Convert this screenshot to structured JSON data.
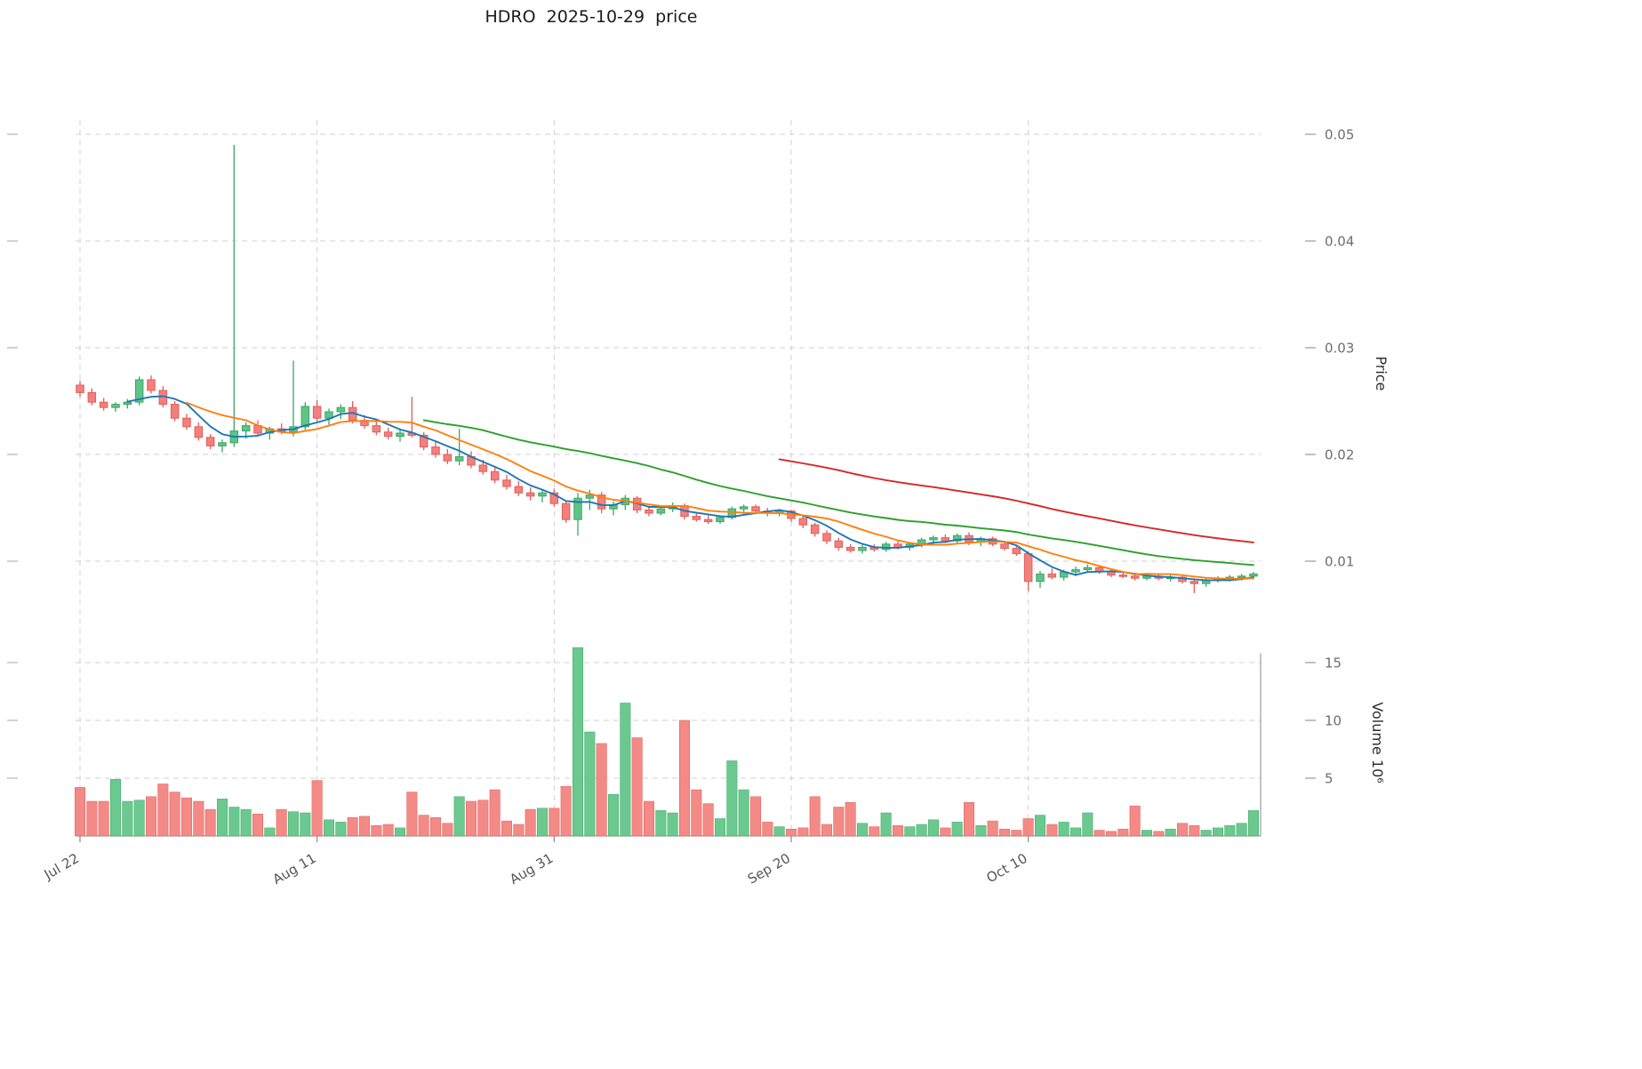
{
  "title": "HDRO  2025-10-29  price",
  "chart_data": {
    "type": "candlestick",
    "title": "HDRO  2025-10-29  price",
    "price_unit": 0.001,
    "volume_unit": 1000000,
    "x_ticks": [
      {
        "day": 0,
        "label": "Jul 22"
      },
      {
        "day": 20,
        "label": "Aug 11"
      },
      {
        "day": 40,
        "label": "Aug 31"
      },
      {
        "day": 60,
        "label": "Sep 20"
      },
      {
        "day": 80,
        "label": "Oct 10"
      }
    ],
    "price_axis": {
      "label": "Price",
      "ticks": [
        {
          "value": 10,
          "label": "0.01"
        },
        {
          "value": 20,
          "label": "0.02"
        },
        {
          "value": 30,
          "label": "0.03"
        },
        {
          "value": 40,
          "label": "0.04"
        },
        {
          "value": 50,
          "label": "0.05"
        }
      ]
    },
    "volume_axis": {
      "label": "Volume  10⁶",
      "ticks": [
        {
          "value": 5,
          "label": "5"
        },
        {
          "value": 10,
          "label": "10"
        },
        {
          "value": 15,
          "label": "15"
        }
      ]
    },
    "moving_averages": [
      {
        "name": "ma-short",
        "window": 5,
        "color": "#1f77b4"
      },
      {
        "name": "ma-mid",
        "window": 10,
        "color": "#ff7f0e"
      },
      {
        "name": "ma-long",
        "window": 30,
        "color": "#2ca02c"
      },
      {
        "name": "ma-longest",
        "window": 60,
        "color": "#d62728"
      }
    ],
    "colors": {
      "up": "#5ec487",
      "up_edge": "#3ba766",
      "down": "#f2807c",
      "down_edge": "#e05e5a",
      "grid": "#d0d0d0",
      "spine": "#8a8a8a",
      "tick_text": "#6e6e6e",
      "date_text": "#555555",
      "axis_label": "#2f2f2f",
      "title": "#1b1b1b"
    },
    "ohlc": [
      [
        26.5,
        26.9,
        25.4,
        25.8
      ],
      [
        25.8,
        26.2,
        24.6,
        24.9
      ],
      [
        24.9,
        25.3,
        24.1,
        24.4
      ],
      [
        24.4,
        24.9,
        24.0,
        24.7
      ],
      [
        24.7,
        25.2,
        24.3,
        24.9
      ],
      [
        24.9,
        27.3,
        24.6,
        27.0
      ],
      [
        27.0,
        27.4,
        25.7,
        26.0
      ],
      [
        26.0,
        26.4,
        24.4,
        24.7
      ],
      [
        24.7,
        25.0,
        23.1,
        23.4
      ],
      [
        23.4,
        23.8,
        22.3,
        22.6
      ],
      [
        22.6,
        23.0,
        21.3,
        21.6
      ],
      [
        21.6,
        21.9,
        20.5,
        20.8
      ],
      [
        20.8,
        21.4,
        20.2,
        21.1
      ],
      [
        21.1,
        49.0,
        20.7,
        22.2
      ],
      [
        22.2,
        23.0,
        21.5,
        22.7
      ],
      [
        22.7,
        23.2,
        21.8,
        22.0
      ],
      [
        22.0,
        22.6,
        21.4,
        22.4
      ],
      [
        22.4,
        22.9,
        21.9,
        22.1
      ],
      [
        22.1,
        28.8,
        21.7,
        22.6
      ],
      [
        22.6,
        24.9,
        22.3,
        24.5
      ],
      [
        24.5,
        25.1,
        23.1,
        23.4
      ],
      [
        23.4,
        24.3,
        22.8,
        24.0
      ],
      [
        24.0,
        24.7,
        23.3,
        24.4
      ],
      [
        24.4,
        25.0,
        22.9,
        23.2
      ],
      [
        23.2,
        23.7,
        22.4,
        22.7
      ],
      [
        22.7,
        23.1,
        21.8,
        22.1
      ],
      [
        22.1,
        22.5,
        21.4,
        21.7
      ],
      [
        21.7,
        22.3,
        21.2,
        22.0
      ],
      [
        22.0,
        25.4,
        21.6,
        21.8
      ],
      [
        21.8,
        22.1,
        20.4,
        20.7
      ],
      [
        20.7,
        21.3,
        19.7,
        20.0
      ],
      [
        20.0,
        20.5,
        19.1,
        19.4
      ],
      [
        19.4,
        22.4,
        19.0,
        19.8
      ],
      [
        19.8,
        20.3,
        18.7,
        19.0
      ],
      [
        19.0,
        19.5,
        18.1,
        18.4
      ],
      [
        18.4,
        18.9,
        17.3,
        17.6
      ],
      [
        17.6,
        18.1,
        16.7,
        17.0
      ],
      [
        17.0,
        17.5,
        16.1,
        16.4
      ],
      [
        16.4,
        16.9,
        15.7,
        16.1
      ],
      [
        16.1,
        16.7,
        15.5,
        16.4
      ],
      [
        16.4,
        16.8,
        15.1,
        15.4
      ],
      [
        15.4,
        15.7,
        13.6,
        13.9
      ],
      [
        13.9,
        16.4,
        12.4,
        15.9
      ],
      [
        15.9,
        16.7,
        14.8,
        16.2
      ],
      [
        16.2,
        16.5,
        14.5,
        14.9
      ],
      [
        14.9,
        15.6,
        14.3,
        15.3
      ],
      [
        15.3,
        16.2,
        14.8,
        15.9
      ],
      [
        15.9,
        16.1,
        14.5,
        14.8
      ],
      [
        14.8,
        15.2,
        14.2,
        14.5
      ],
      [
        14.5,
        15.1,
        14.3,
        14.9
      ],
      [
        14.9,
        15.5,
        14.6,
        15.2
      ],
      [
        15.2,
        15.4,
        13.9,
        14.2
      ],
      [
        14.2,
        14.6,
        13.7,
        13.9
      ],
      [
        13.9,
        14.3,
        13.5,
        13.7
      ],
      [
        13.7,
        14.3,
        13.5,
        14.1
      ],
      [
        14.1,
        15.1,
        13.9,
        14.9
      ],
      [
        14.9,
        15.3,
        14.4,
        15.1
      ],
      [
        15.1,
        15.3,
        14.4,
        14.7
      ],
      [
        14.7,
        15.0,
        14.2,
        14.5
      ],
      [
        14.5,
        14.9,
        14.2,
        14.7
      ],
      [
        14.7,
        14.8,
        13.7,
        14.0
      ],
      [
        14.0,
        14.2,
        13.1,
        13.4
      ],
      [
        13.4,
        13.6,
        12.3,
        12.6
      ],
      [
        12.6,
        12.9,
        11.6,
        11.9
      ],
      [
        11.9,
        12.2,
        11.0,
        11.3
      ],
      [
        11.3,
        11.6,
        10.8,
        11.0
      ],
      [
        11.0,
        11.5,
        10.7,
        11.3
      ],
      [
        11.3,
        11.6,
        10.9,
        11.1
      ],
      [
        11.1,
        11.8,
        10.9,
        11.6
      ],
      [
        11.6,
        11.9,
        11.1,
        11.3
      ],
      [
        11.3,
        11.8,
        11.0,
        11.6
      ],
      [
        11.6,
        12.2,
        11.3,
        12.0
      ],
      [
        12.0,
        12.4,
        11.6,
        12.2
      ],
      [
        12.2,
        12.5,
        11.7,
        11.9
      ],
      [
        11.9,
        12.6,
        11.6,
        12.4
      ],
      [
        12.4,
        12.7,
        11.5,
        11.8
      ],
      [
        11.8,
        12.3,
        11.4,
        12.1
      ],
      [
        12.1,
        12.3,
        11.4,
        11.6
      ],
      [
        11.6,
        11.9,
        11.0,
        11.2
      ],
      [
        11.2,
        11.4,
        10.5,
        10.7
      ],
      [
        10.7,
        10.9,
        7.2,
        8.1
      ],
      [
        8.1,
        9.1,
        7.5,
        8.8
      ],
      [
        8.8,
        9.3,
        8.3,
        8.5
      ],
      [
        8.5,
        9.2,
        8.2,
        9.0
      ],
      [
        9.0,
        9.5,
        8.6,
        9.2
      ],
      [
        9.2,
        9.7,
        8.9,
        9.4
      ],
      [
        9.4,
        9.6,
        8.8,
        9.0
      ],
      [
        9.0,
        9.2,
        8.5,
        8.7
      ],
      [
        8.7,
        9.0,
        8.4,
        8.6
      ],
      [
        8.6,
        8.9,
        8.2,
        8.4
      ],
      [
        8.4,
        8.8,
        8.2,
        8.6
      ],
      [
        8.6,
        8.8,
        8.2,
        8.4
      ],
      [
        8.4,
        8.7,
        8.1,
        8.5
      ],
      [
        8.5,
        8.7,
        7.9,
        8.1
      ],
      [
        8.1,
        8.4,
        7.0,
        7.9
      ],
      [
        7.9,
        8.4,
        7.6,
        8.2
      ],
      [
        8.2,
        8.6,
        8.0,
        8.4
      ],
      [
        8.4,
        8.7,
        8.1,
        8.5
      ],
      [
        8.5,
        8.8,
        8.2,
        8.6
      ],
      [
        8.6,
        9.0,
        8.3,
        8.8
      ]
    ],
    "volume_millions": [
      4.2,
      3.0,
      3.0,
      4.9,
      3.0,
      3.1,
      3.4,
      4.5,
      3.8,
      3.3,
      3.0,
      2.3,
      3.2,
      2.5,
      2.3,
      1.9,
      0.7,
      2.3,
      2.1,
      2.0,
      4.8,
      1.4,
      1.2,
      1.6,
      1.7,
      0.9,
      1.0,
      0.7,
      3.8,
      1.8,
      1.6,
      1.1,
      3.4,
      3.0,
      3.1,
      4.0,
      1.3,
      1.0,
      2.3,
      2.4,
      2.4,
      4.3,
      16.3,
      9.0,
      8.0,
      3.6,
      11.5,
      8.5,
      3.0,
      2.2,
      2.0,
      10.0,
      4.0,
      2.8,
      1.5,
      6.5,
      4.0,
      3.4,
      1.2,
      0.8,
      0.6,
      0.7,
      3.4,
      1.0,
      2.5,
      2.9,
      1.1,
      0.8,
      2.0,
      0.9,
      0.8,
      1.0,
      1.4,
      0.7,
      1.2,
      2.9,
      0.9,
      1.3,
      0.6,
      0.5,
      1.5,
      1.8,
      1.0,
      1.2,
      0.7,
      2.0,
      0.5,
      0.4,
      0.6,
      2.6,
      0.5,
      0.4,
      0.6,
      1.1,
      0.9,
      0.5,
      0.7,
      0.9,
      1.1,
      2.2
    ]
  }
}
